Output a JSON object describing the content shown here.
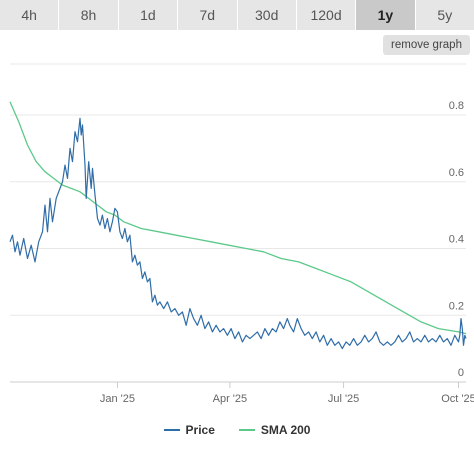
{
  "range_tabs": [
    {
      "label": "4h",
      "active": false
    },
    {
      "label": "8h",
      "active": false
    },
    {
      "label": "1d",
      "active": false
    },
    {
      "label": "7d",
      "active": false
    },
    {
      "label": "30d",
      "active": false
    },
    {
      "label": "120d",
      "active": false
    },
    {
      "label": "1y",
      "active": true
    },
    {
      "label": "5y",
      "active": false
    }
  ],
  "remove_graph_label": "remove graph",
  "chart_data": {
    "type": "line",
    "title": "",
    "xlabel": "",
    "ylabel": "",
    "x_ticks": [
      "Jan '25",
      "Apr '25",
      "Jul '25",
      "Oct '25"
    ],
    "x_tick_dates": [
      "2025-01-01",
      "2025-04-01",
      "2025-07-01",
      "2025-10-01"
    ],
    "xlim": [
      "2024-10-07",
      "2025-10-07"
    ],
    "ylim": [
      0,
      0.85
    ],
    "y_ticks": [
      "0",
      "0.2",
      "0.4",
      "0.6",
      "0.8"
    ],
    "y_tick_values": [
      0,
      0.2,
      0.4,
      0.6,
      0.8
    ],
    "grid": true,
    "legend_position": "bottom",
    "series": [
      {
        "name": "Price",
        "color": "#2f6da8",
        "points": [
          [
            "2024-10-07",
            0.42
          ],
          [
            "2024-10-09",
            0.44
          ],
          [
            "2024-10-11",
            0.39
          ],
          [
            "2024-10-13",
            0.42
          ],
          [
            "2024-10-15",
            0.38
          ],
          [
            "2024-10-18",
            0.43
          ],
          [
            "2024-10-21",
            0.37
          ],
          [
            "2024-10-24",
            0.41
          ],
          [
            "2024-10-27",
            0.36
          ],
          [
            "2024-10-30",
            0.42
          ],
          [
            "2024-11-02",
            0.45
          ],
          [
            "2024-11-04",
            0.53
          ],
          [
            "2024-11-06",
            0.45
          ],
          [
            "2024-11-08",
            0.55
          ],
          [
            "2024-11-10",
            0.48
          ],
          [
            "2024-11-13",
            0.55
          ],
          [
            "2024-11-16",
            0.58
          ],
          [
            "2024-11-18",
            0.6
          ],
          [
            "2024-11-20",
            0.65
          ],
          [
            "2024-11-22",
            0.61
          ],
          [
            "2024-11-24",
            0.7
          ],
          [
            "2024-11-26",
            0.66
          ],
          [
            "2024-11-28",
            0.75
          ],
          [
            "2024-11-30",
            0.72
          ],
          [
            "2024-12-02",
            0.79
          ],
          [
            "2024-12-03",
            0.74
          ],
          [
            "2024-12-04",
            0.77
          ],
          [
            "2024-12-06",
            0.65
          ],
          [
            "2024-12-07",
            0.55
          ],
          [
            "2024-12-09",
            0.66
          ],
          [
            "2024-12-11",
            0.58
          ],
          [
            "2024-12-12",
            0.64
          ],
          [
            "2024-12-14",
            0.56
          ],
          [
            "2024-12-16",
            0.49
          ],
          [
            "2024-12-18",
            0.47
          ],
          [
            "2024-12-20",
            0.5
          ],
          [
            "2024-12-22",
            0.46
          ],
          [
            "2024-12-24",
            0.49
          ],
          [
            "2024-12-26",
            0.45
          ],
          [
            "2024-12-28",
            0.48
          ],
          [
            "2024-12-30",
            0.52
          ],
          [
            "2025-01-01",
            0.51
          ],
          [
            "2025-01-03",
            0.45
          ],
          [
            "2025-01-05",
            0.43
          ],
          [
            "2025-01-07",
            0.46
          ],
          [
            "2025-01-09",
            0.42
          ],
          [
            "2025-01-11",
            0.44
          ],
          [
            "2025-01-13",
            0.36
          ],
          [
            "2025-01-15",
            0.38
          ],
          [
            "2025-01-17",
            0.35
          ],
          [
            "2025-01-19",
            0.36
          ],
          [
            "2025-01-21",
            0.31
          ],
          [
            "2025-01-23",
            0.33
          ],
          [
            "2025-01-25",
            0.3
          ],
          [
            "2025-01-27",
            0.31
          ],
          [
            "2025-01-29",
            0.24
          ],
          [
            "2025-01-31",
            0.26
          ],
          [
            "2025-02-02",
            0.23
          ],
          [
            "2025-02-04",
            0.24
          ],
          [
            "2025-02-07",
            0.22
          ],
          [
            "2025-02-10",
            0.24
          ],
          [
            "2025-02-13",
            0.21
          ],
          [
            "2025-02-16",
            0.22
          ],
          [
            "2025-02-19",
            0.2
          ],
          [
            "2025-02-22",
            0.21
          ],
          [
            "2025-02-25",
            0.17
          ],
          [
            "2025-02-28",
            0.22
          ],
          [
            "2025-03-03",
            0.19
          ],
          [
            "2025-03-06",
            0.17
          ],
          [
            "2025-03-09",
            0.2
          ],
          [
            "2025-03-12",
            0.16
          ],
          [
            "2025-03-15",
            0.18
          ],
          [
            "2025-03-18",
            0.15
          ],
          [
            "2025-03-21",
            0.17
          ],
          [
            "2025-03-24",
            0.15
          ],
          [
            "2025-03-27",
            0.16
          ],
          [
            "2025-03-30",
            0.14
          ],
          [
            "2025-04-02",
            0.16
          ],
          [
            "2025-04-05",
            0.13
          ],
          [
            "2025-04-08",
            0.15
          ],
          [
            "2025-04-11",
            0.12
          ],
          [
            "2025-04-14",
            0.14
          ],
          [
            "2025-04-17",
            0.13
          ],
          [
            "2025-04-20",
            0.14
          ],
          [
            "2025-04-23",
            0.15
          ],
          [
            "2025-04-26",
            0.13
          ],
          [
            "2025-04-29",
            0.16
          ],
          [
            "2025-05-02",
            0.14
          ],
          [
            "2025-05-05",
            0.16
          ],
          [
            "2025-05-08",
            0.15
          ],
          [
            "2025-05-11",
            0.18
          ],
          [
            "2025-05-14",
            0.16
          ],
          [
            "2025-05-17",
            0.19
          ],
          [
            "2025-05-19",
            0.17
          ],
          [
            "2025-05-22",
            0.15
          ],
          [
            "2025-05-25",
            0.19
          ],
          [
            "2025-05-28",
            0.16
          ],
          [
            "2025-05-31",
            0.14
          ],
          [
            "2025-06-03",
            0.15
          ],
          [
            "2025-06-06",
            0.13
          ],
          [
            "2025-06-09",
            0.15
          ],
          [
            "2025-06-12",
            0.12
          ],
          [
            "2025-06-15",
            0.14
          ],
          [
            "2025-06-18",
            0.11
          ],
          [
            "2025-06-21",
            0.13
          ],
          [
            "2025-06-24",
            0.11
          ],
          [
            "2025-06-27",
            0.12
          ],
          [
            "2025-06-30",
            0.1
          ],
          [
            "2025-07-03",
            0.12
          ],
          [
            "2025-07-06",
            0.11
          ],
          [
            "2025-07-09",
            0.13
          ],
          [
            "2025-07-12",
            0.11
          ],
          [
            "2025-07-15",
            0.12
          ],
          [
            "2025-07-18",
            0.14
          ],
          [
            "2025-07-21",
            0.12
          ],
          [
            "2025-07-24",
            0.13
          ],
          [
            "2025-07-27",
            0.15
          ],
          [
            "2025-07-30",
            0.12
          ],
          [
            "2025-08-02",
            0.11
          ],
          [
            "2025-08-05",
            0.12
          ],
          [
            "2025-08-08",
            0.11
          ],
          [
            "2025-08-11",
            0.12
          ],
          [
            "2025-08-14",
            0.14
          ],
          [
            "2025-08-17",
            0.12
          ],
          [
            "2025-08-20",
            0.13
          ],
          [
            "2025-08-23",
            0.15
          ],
          [
            "2025-08-26",
            0.12
          ],
          [
            "2025-08-29",
            0.13
          ],
          [
            "2025-09-01",
            0.12
          ],
          [
            "2025-09-04",
            0.14
          ],
          [
            "2025-09-07",
            0.12
          ],
          [
            "2025-09-10",
            0.13
          ],
          [
            "2025-09-13",
            0.12
          ],
          [
            "2025-09-16",
            0.14
          ],
          [
            "2025-09-19",
            0.12
          ],
          [
            "2025-09-22",
            0.13
          ],
          [
            "2025-09-25",
            0.11
          ],
          [
            "2025-09-28",
            0.14
          ],
          [
            "2025-10-01",
            0.12
          ],
          [
            "2025-10-02",
            0.14
          ],
          [
            "2025-10-03",
            0.19
          ],
          [
            "2025-10-04",
            0.16
          ],
          [
            "2025-10-05",
            0.11
          ],
          [
            "2025-10-06",
            0.14
          ],
          [
            "2025-10-07",
            0.13
          ]
        ]
      },
      {
        "name": "SMA 200",
        "color": "#5cc98a",
        "points": [
          [
            "2024-10-07",
            0.84
          ],
          [
            "2024-10-14",
            0.78
          ],
          [
            "2024-10-21",
            0.71
          ],
          [
            "2024-10-28",
            0.66
          ],
          [
            "2024-11-04",
            0.63
          ],
          [
            "2024-11-11",
            0.61
          ],
          [
            "2024-11-18",
            0.59
          ],
          [
            "2024-11-25",
            0.58
          ],
          [
            "2024-12-02",
            0.57
          ],
          [
            "2024-12-09",
            0.55
          ],
          [
            "2024-12-16",
            0.53
          ],
          [
            "2024-12-23",
            0.51
          ],
          [
            "2024-12-30",
            0.5
          ],
          [
            "2025-01-06",
            0.48
          ],
          [
            "2025-01-13",
            0.47
          ],
          [
            "2025-01-20",
            0.46
          ],
          [
            "2025-02-03",
            0.45
          ],
          [
            "2025-02-17",
            0.44
          ],
          [
            "2025-03-03",
            0.43
          ],
          [
            "2025-03-17",
            0.42
          ],
          [
            "2025-03-31",
            0.41
          ],
          [
            "2025-04-14",
            0.4
          ],
          [
            "2025-04-28",
            0.39
          ],
          [
            "2025-05-12",
            0.37
          ],
          [
            "2025-05-26",
            0.36
          ],
          [
            "2025-06-09",
            0.34
          ],
          [
            "2025-06-23",
            0.32
          ],
          [
            "2025-07-07",
            0.3
          ],
          [
            "2025-07-21",
            0.27
          ],
          [
            "2025-08-04",
            0.24
          ],
          [
            "2025-08-18",
            0.21
          ],
          [
            "2025-09-01",
            0.18
          ],
          [
            "2025-09-15",
            0.16
          ],
          [
            "2025-10-01",
            0.15
          ],
          [
            "2025-10-07",
            0.145
          ]
        ]
      }
    ]
  }
}
